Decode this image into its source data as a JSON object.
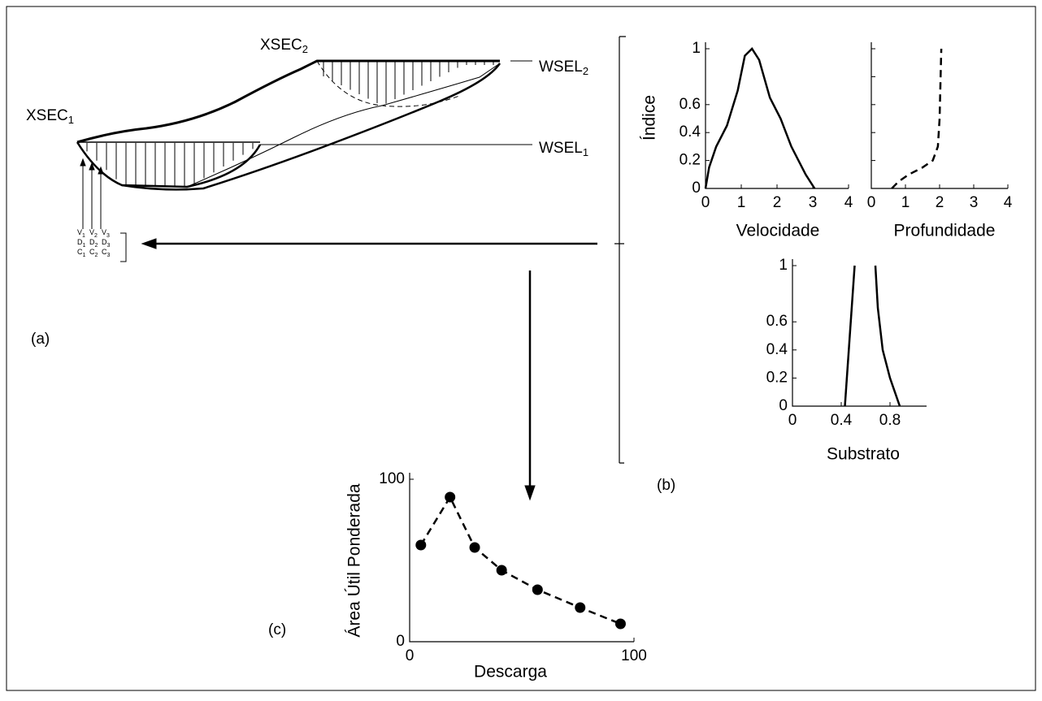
{
  "diagram": {
    "xsec1": {
      "text": "XSEC",
      "sub": "1"
    },
    "xsec2": {
      "text": "XSEC",
      "sub": "2"
    },
    "wsel1": {
      "text": "WSEL",
      "sub": "1"
    },
    "wsel2": {
      "text": "WSEL",
      "sub": "2"
    },
    "measures": [
      [
        {
          "text": "V",
          "sub": "1"
        },
        {
          "text": "V",
          "sub": "2"
        },
        {
          "text": "V",
          "sub": "3"
        }
      ],
      [
        {
          "text": "D",
          "sub": "1"
        },
        {
          "text": "D",
          "sub": "2"
        },
        {
          "text": "D",
          "sub": "3"
        }
      ],
      [
        {
          "text": "C",
          "sub": "1"
        },
        {
          "text": "C",
          "sub": "2"
        },
        {
          "text": "C",
          "sub": "3"
        }
      ]
    ],
    "label_a": "(a)",
    "label_b": "(b)",
    "label_c": "(c)"
  },
  "chart_data": [
    {
      "type": "line",
      "x_label": "Velocidade",
      "y_label": "Índice",
      "series": [
        {
          "color": "#000000",
          "dashed": false,
          "x": [
            0,
            0.1,
            0.3,
            0.6,
            0.9,
            1.1,
            1.3,
            1.5,
            1.8,
            2.1,
            2.4,
            2.8,
            3.05
          ],
          "values": [
            0,
            0.15,
            0.3,
            0.45,
            0.7,
            0.95,
            1.0,
            0.92,
            0.65,
            0.5,
            0.3,
            0.1,
            0
          ]
        }
      ],
      "xlim": [
        0,
        4
      ],
      "ylim": [
        0,
        1
      ],
      "xticks": [
        0,
        1,
        2,
        3,
        4
      ],
      "yticks": [
        0,
        0.2,
        0.4,
        0.6,
        1.0
      ],
      "show_ytick_labels": true
    },
    {
      "type": "line",
      "x_label": "Profundidade",
      "series": [
        {
          "color": "#000000",
          "dashed": true,
          "x": [
            0.6,
            0.8,
            1.1,
            1.5,
            1.8,
            1.95,
            2.0,
            2.02,
            2.05
          ],
          "values": [
            0,
            0.05,
            0.1,
            0.15,
            0.2,
            0.3,
            0.5,
            0.7,
            1.0
          ]
        }
      ],
      "xlim": [
        0,
        4
      ],
      "ylim": [
        0,
        1
      ],
      "xticks": [
        0,
        1,
        2,
        3,
        4
      ],
      "yticks": [
        0,
        0.2,
        0.4,
        0.6,
        0.8,
        1.0
      ],
      "show_ytick_labels": false
    },
    {
      "type": "line",
      "x_label": "Substrato",
      "series": [
        {
          "color": "#000000",
          "dashed": false,
          "x": [
            0.43,
            0.47,
            0.51
          ],
          "values": [
            0,
            0.5,
            1.0
          ]
        },
        {
          "color": "#000000",
          "dashed": false,
          "x": [
            0.88,
            0.8,
            0.74,
            0.7,
            0.68
          ],
          "values": [
            0,
            0.2,
            0.4,
            0.7,
            1.0
          ]
        }
      ],
      "xlim": [
        0,
        1.1
      ],
      "ylim": [
        0,
        1
      ],
      "xticks": [
        0,
        0.4,
        0.8
      ],
      "yticks": [
        0,
        0.2,
        0.4,
        0.6,
        1.0
      ],
      "show_ytick_labels": true
    },
    {
      "type": "line",
      "x_label": "Descarga",
      "y_label": "Área Útil Ponderada",
      "markers": true,
      "series": [
        {
          "color": "#000000",
          "dashed": true,
          "x": [
            5,
            18,
            29,
            41,
            57,
            76,
            94
          ],
          "values": [
            59.5,
            89,
            58,
            44,
            32,
            21,
            11
          ]
        }
      ],
      "xlim": [
        0,
        100
      ],
      "ylim": [
        0,
        100
      ],
      "xticks": [
        0,
        100
      ],
      "yticks": [
        0,
        100
      ],
      "show_ytick_labels": true
    }
  ]
}
